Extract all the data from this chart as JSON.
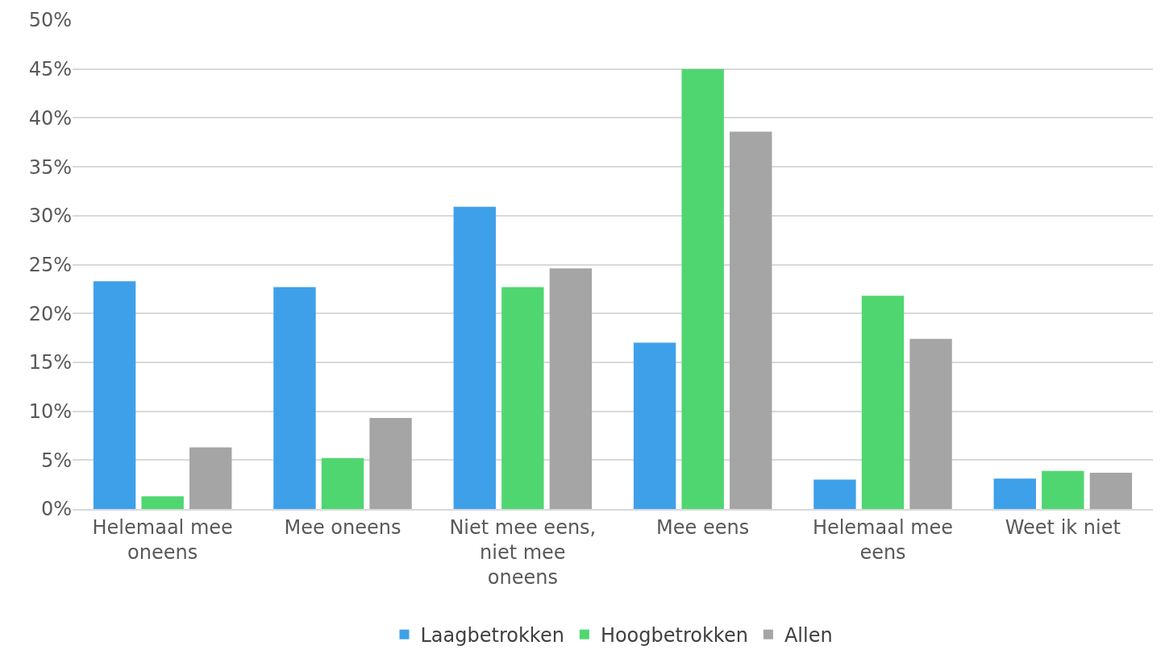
{
  "chart_data": {
    "type": "bar",
    "categories": [
      "Helemaal mee oneens",
      "Mee oneens",
      "Niet mee eens, niet mee oneens",
      "Mee eens",
      "Helemaal mee eens",
      "Weet ik niet"
    ],
    "series": [
      {
        "name": "Laagbetrokken",
        "color": "#3fa0ea",
        "values": [
          23.3,
          22.7,
          30.9,
          17.0,
          3.0,
          3.1
        ]
      },
      {
        "name": "Hoogbetrokken",
        "color": "#50d670",
        "values": [
          1.3,
          5.2,
          22.7,
          45.0,
          21.8,
          3.9
        ]
      },
      {
        "name": "Allen",
        "color": "#a5a5a5",
        "values": [
          6.3,
          9.3,
          24.6,
          38.6,
          17.4,
          3.7
        ]
      }
    ],
    "ylim": [
      0,
      50
    ],
    "yticks": [
      {
        "value": 0,
        "label": "0%"
      },
      {
        "value": 5,
        "label": "5%"
      },
      {
        "value": 10,
        "label": "10%"
      },
      {
        "value": 15,
        "label": "15%"
      },
      {
        "value": 20,
        "label": "20%"
      },
      {
        "value": 25,
        "label": "25%"
      },
      {
        "value": 30,
        "label": "30%"
      },
      {
        "value": 35,
        "label": "35%"
      },
      {
        "value": 40,
        "label": "40%"
      },
      {
        "value": 45,
        "label": "45%"
      },
      {
        "value": 50,
        "label": "50%"
      }
    ],
    "grid": "y",
    "legend": "bottom"
  }
}
